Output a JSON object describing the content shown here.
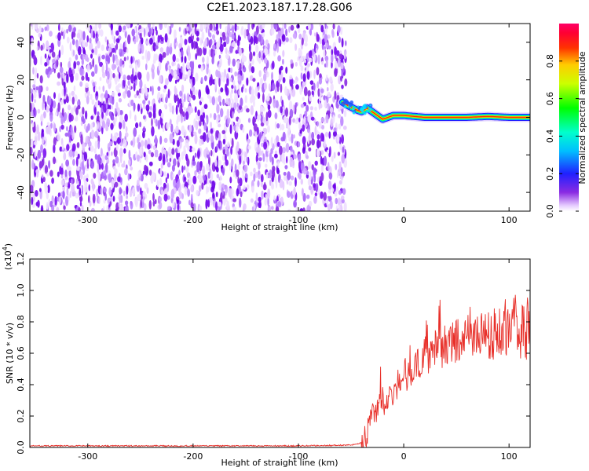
{
  "figure_title": "C2E1.2023.187.17.28.G06",
  "chart_data": [
    {
      "type": "heatmap",
      "xlabel": "Height of straight line (km)",
      "ylabel": "Frequency (Hz)",
      "xlim": [
        -355,
        120
      ],
      "ylim": [
        -50,
        50
      ],
      "xticks": [
        -300,
        -200,
        -100,
        0,
        100
      ],
      "yticks": [
        -40,
        -20,
        0,
        20,
        40
      ],
      "description_of_data": "noise speckle below ~-55 km; narrow high-amplitude tone near 0 Hz above ~-55 km",
      "noise_region_x": [
        -355,
        -55
      ],
      "signal_trace": {
        "x": [
          -58,
          -52,
          -45,
          -40,
          -35,
          -30,
          -25,
          -20,
          -15,
          -10,
          -5,
          0,
          10,
          20,
          40,
          60,
          80,
          100,
          120
        ],
        "y": [
          8,
          6,
          4,
          3,
          5,
          3,
          1,
          -1,
          0,
          1,
          1,
          1,
          0.5,
          0,
          0,
          0,
          0.5,
          0,
          0
        ]
      },
      "colorbar": {
        "label": "Normalized spectral amplitude",
        "range": [
          0.0,
          1.0
        ],
        "ticks": [
          0.0,
          0.2,
          0.4,
          0.6,
          0.8
        ],
        "colormap": "rainbow (white-violet-blue-cyan-green-yellow-red-magenta)"
      },
      "grid": false
    },
    {
      "type": "line",
      "xlabel": "Height of straight line (km)",
      "ylabel": "SNR (10 * v/v)",
      "y_scale_label": "(x10",
      "y_scale_exponent": "4",
      "xlim": [
        -355,
        120
      ],
      "ylim": [
        0.0,
        1.2
      ],
      "xticks": [
        -300,
        -200,
        -100,
        0,
        100
      ],
      "yticks": [
        0.0,
        0.2,
        0.4,
        0.6,
        0.8,
        1.0,
        1.2
      ],
      "series": [
        {
          "color": "#e8302a",
          "x": [
            -355,
            -300,
            -200,
            -100,
            -50,
            -40,
            -35,
            -30,
            -25,
            -20,
            -15,
            -10,
            -5,
            0,
            5,
            10,
            15,
            20,
            30,
            40,
            50,
            60,
            70,
            80,
            90,
            100,
            105,
            110,
            115,
            120
          ],
          "y": [
            0.01,
            0.01,
            0.01,
            0.01,
            0.015,
            0.03,
            0.08,
            0.2,
            0.25,
            0.3,
            0.3,
            0.35,
            0.4,
            0.45,
            0.48,
            0.52,
            0.55,
            0.58,
            0.62,
            0.65,
            0.68,
            0.7,
            0.72,
            0.7,
            0.72,
            0.75,
            0.8,
            0.75,
            0.72,
            0.78
          ]
        }
      ],
      "grid": false
    }
  ]
}
